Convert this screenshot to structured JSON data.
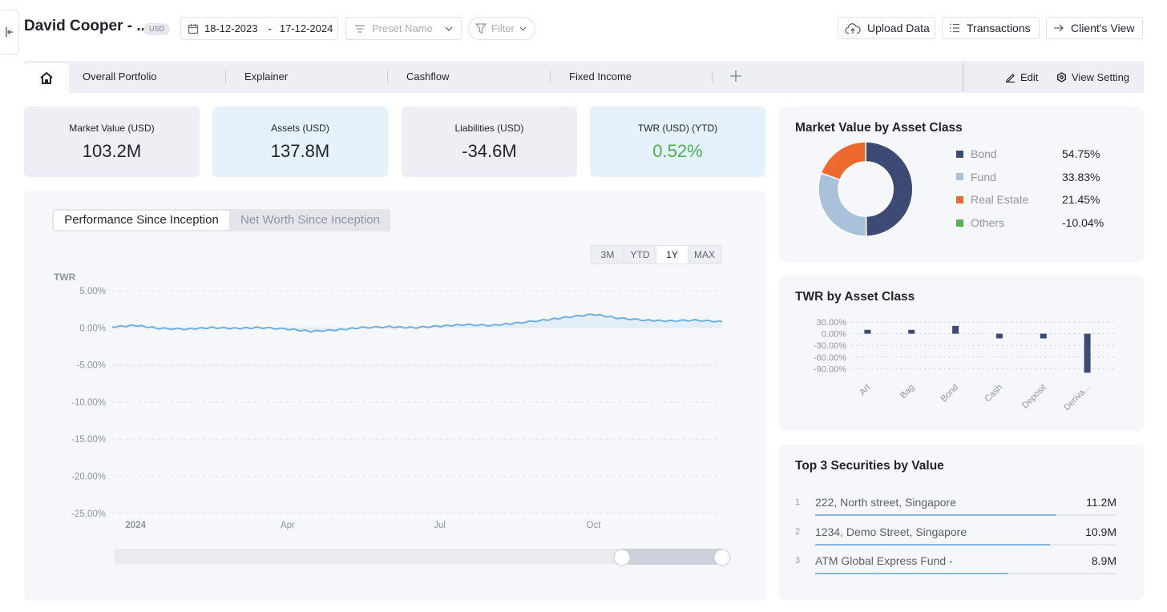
{
  "header": {
    "client_name": "David Cooper - ...",
    "currency": "USD",
    "date_start": "18-12-2023",
    "date_sep": "-",
    "date_end": "17-12-2024",
    "preset_placeholder": "Preset Name",
    "filter_label": "Filter",
    "upload_label": "Upload Data",
    "transactions_label": "Transactions",
    "client_view_label": "Client's View"
  },
  "tabs": {
    "items": [
      "Overall Portfolio",
      "Explainer",
      "Cashflow",
      "Fixed Income"
    ],
    "edit_label": "Edit",
    "view_setting_label": "View Setting"
  },
  "kpis": [
    {
      "label": "Market Value (USD)",
      "value": "103.2M"
    },
    {
      "label": "Assets (USD)",
      "value": "137.8M"
    },
    {
      "label": "Liabilities (USD)",
      "value": "-34.6M"
    },
    {
      "label": "TWR (USD) (YTD)",
      "value": "0.52%",
      "color": "#4caf50"
    }
  ],
  "performance": {
    "tab_active": "Performance Since Inception",
    "tab_inactive": "Net Worth Since Inception",
    "ranges": [
      "3M",
      "YTD",
      "1Y",
      "MAX"
    ],
    "active_range": "1Y"
  },
  "chart_data": [
    {
      "type": "line",
      "ylabel": "TWR",
      "ylim": [
        -25,
        5
      ],
      "y_ticks": [
        "5.00%",
        "0.00%",
        "-5.00%",
        "-10.00%",
        "-15.00%",
        "-20.00%",
        "-25.00%"
      ],
      "x_ticks": [
        "2024",
        "Apr",
        "Jul",
        "Oct"
      ],
      "x": [
        "2023-12-18",
        "2024-01-01",
        "2024-01-15",
        "2024-02-01",
        "2024-02-15",
        "2024-03-01",
        "2024-03-15",
        "2024-04-01",
        "2024-04-15",
        "2024-05-01",
        "2024-05-15",
        "2024-06-01",
        "2024-06-15",
        "2024-07-01",
        "2024-07-15",
        "2024-08-01",
        "2024-08-15",
        "2024-09-01",
        "2024-09-15",
        "2024-10-01",
        "2024-10-15",
        "2024-11-01",
        "2024-11-15",
        "2024-12-01",
        "2024-12-17"
      ],
      "series": [
        {
          "values": [
            0.1,
            0.3,
            -0.1,
            -0.2,
            0.0,
            -0.1,
            0.0,
            -0.2,
            -0.5,
            -0.3,
            0.0,
            0.1,
            0.0,
            0.2,
            0.4,
            0.3,
            0.6,
            1.0,
            1.4,
            1.8,
            1.3,
            1.0,
            0.9,
            1.0,
            0.8
          ],
          "color": "#6fb0e0"
        }
      ],
      "grid": true
    },
    {
      "type": "pie",
      "title": "Market Value by Asset Class",
      "categories": [
        "Bond",
        "Fund",
        "Real Estate",
        "Others"
      ],
      "values": [
        54.75,
        33.83,
        21.45,
        -10.04
      ],
      "labels": [
        "54.75%",
        "33.83%",
        "21.45%",
        "-10.04%"
      ],
      "colors": [
        "#3d4a73",
        "#a9c1d9",
        "#ec6a2e",
        "#4cb84c"
      ]
    },
    {
      "type": "bar",
      "title": "TWR by Asset Class",
      "categories": [
        "Art",
        "Bag",
        "Bond",
        "Cash",
        "Deposit",
        "Deriva..."
      ],
      "values": [
        10,
        10,
        20,
        -12,
        -12,
        -100
      ],
      "y_ticks": [
        "30.00%",
        "0.00%",
        "-30.00%",
        "-60.00%",
        "-90.00%"
      ],
      "ylim": [
        -100,
        30
      ],
      "color": "#3d4a73"
    }
  ],
  "top_securities": {
    "title": "Top 3 Securities by Value",
    "items": [
      {
        "rank": "1",
        "name": "222, North street, Singapore",
        "value": "11.2M",
        "share": 0.8
      },
      {
        "rank": "2",
        "name": "1234, Demo Street, Singapore",
        "value": "10.9M",
        "share": 0.78
      },
      {
        "rank": "3",
        "name": "ATM Global Express Fund -",
        "value": "8.9M",
        "share": 0.64
      }
    ]
  }
}
